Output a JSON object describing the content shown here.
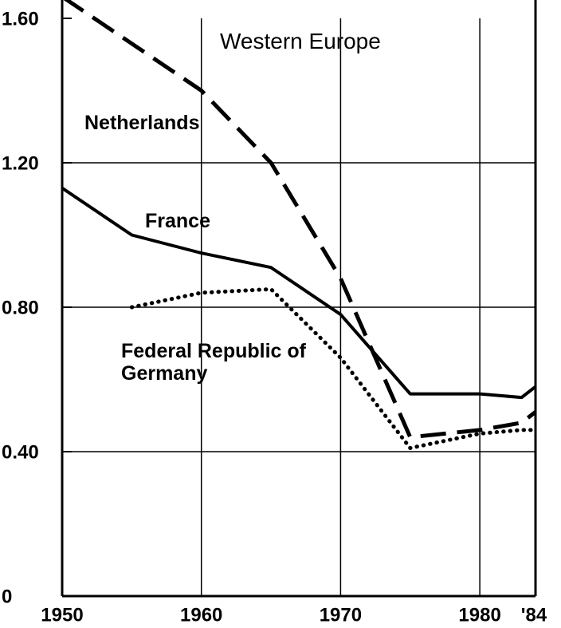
{
  "chart_data": {
    "type": "line",
    "title": "Western Europe",
    "x": [
      1950,
      1955,
      1960,
      1965,
      1970,
      1975,
      1980,
      1983,
      1984
    ],
    "series": [
      {
        "name": "Netherlands",
        "color": "#000000",
        "style": "dashed",
        "values": [
          1.66,
          1.53,
          1.4,
          1.2,
          0.88,
          0.44,
          0.46,
          0.48,
          0.51
        ]
      },
      {
        "name": "France",
        "color": "#000000",
        "style": "solid",
        "values": [
          1.13,
          1.0,
          0.95,
          0.91,
          0.78,
          0.56,
          0.56,
          0.55,
          0.58
        ]
      },
      {
        "name": "Federal Republic of Germany",
        "color": "#000000",
        "style": "dotted",
        "values": [
          null,
          0.8,
          0.84,
          0.85,
          0.66,
          0.41,
          0.45,
          0.46,
          0.46
        ]
      }
    ],
    "xlim": [
      1950,
      1984
    ],
    "xticks": [
      1950,
      1960,
      1970,
      1980,
      {
        "value": 1984,
        "label": "'84"
      }
    ],
    "ylim": [
      0,
      1.6
    ],
    "yticks": [
      0,
      {
        "value": 0.4,
        "label": "0.40"
      },
      {
        "value": 0.8,
        "label": "0.80"
      },
      {
        "value": 1.2,
        "label": "1.20"
      },
      {
        "value": 1.6,
        "label": "1.60"
      }
    ],
    "grid": true
  }
}
